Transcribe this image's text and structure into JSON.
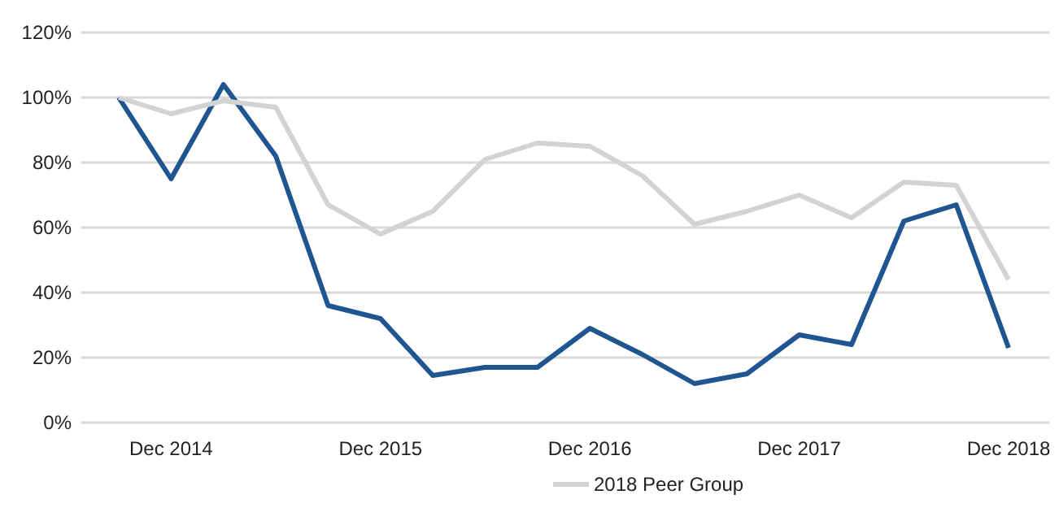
{
  "chart_data": {
    "type": "line",
    "categories": [
      null,
      "Dec 2014",
      null,
      null,
      null,
      "Dec 2015",
      null,
      null,
      null,
      "Dec 2016",
      null,
      null,
      null,
      "Dec 2017",
      null,
      null,
      null,
      "Dec 2018"
    ],
    "series": [
      {
        "color": "#1f5591",
        "values": [
          100,
          75,
          104,
          82,
          36,
          32,
          14.5,
          17,
          17,
          29,
          21,
          12,
          15,
          27,
          24,
          62,
          67,
          23
        ]
      },
      {
        "name": "2018 Peer Group",
        "color": "#d3d3d3",
        "values": [
          100,
          95,
          99,
          97,
          67,
          58,
          65,
          81,
          86,
          85,
          76,
          61,
          65,
          70,
          63,
          74,
          73,
          44
        ]
      }
    ],
    "ylim": [
      0,
      120
    ],
    "yticks": [
      {
        "value": 0,
        "label": "0%"
      },
      {
        "value": 20,
        "label": "20%"
      },
      {
        "value": 40,
        "label": "40%"
      },
      {
        "value": 60,
        "label": "60%"
      },
      {
        "value": 80,
        "label": "80%"
      },
      {
        "value": 100,
        "label": "100%"
      },
      {
        "value": 120,
        "label": "120%"
      }
    ],
    "grid": "y",
    "legend": "bottom",
    "marker": "none",
    "line_style": "solid"
  }
}
